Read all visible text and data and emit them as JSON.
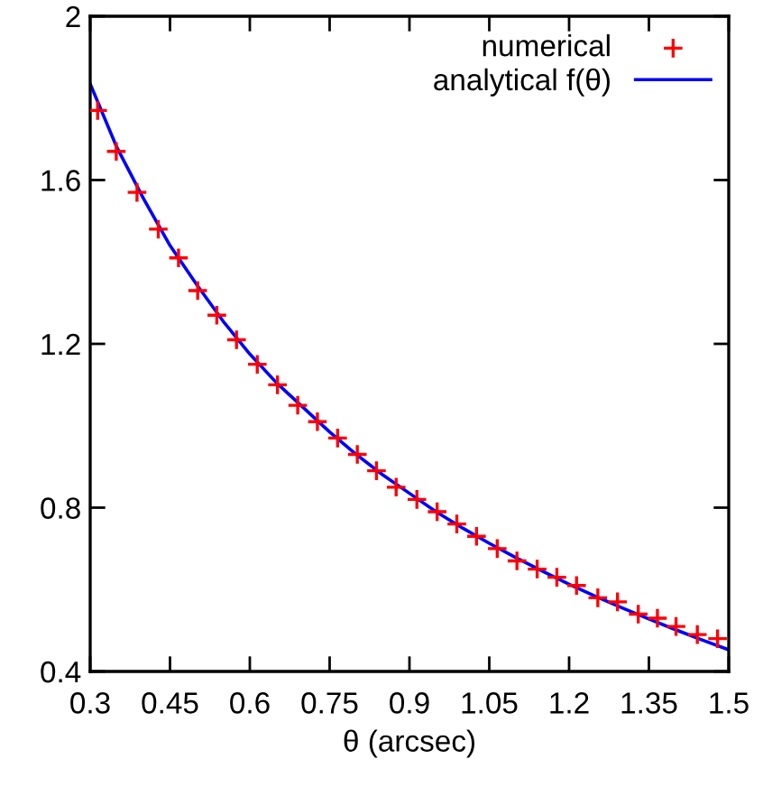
{
  "chart_data": {
    "type": "scatter",
    "xlabel": "θ (arcsec)",
    "xlim": [
      0.3,
      1.5
    ],
    "ylim": [
      0.4,
      2
    ],
    "xticks": [
      0.3,
      0.45,
      0.6,
      0.75,
      0.9,
      1.05,
      1.2,
      1.35,
      1.5
    ],
    "yticks": [
      0.4,
      0.8,
      1.2,
      1.6,
      2
    ],
    "grid": false,
    "legend": "top right",
    "series": [
      {
        "name": "numerical",
        "marker": "cross",
        "color": "#ff0000",
        "x": [
          0.314,
          0.349,
          0.388,
          0.428,
          0.466,
          0.502,
          0.538,
          0.575,
          0.614,
          0.652,
          0.69,
          0.727,
          0.765,
          0.802,
          0.838,
          0.875,
          0.914,
          0.952,
          0.989,
          1.026,
          1.065,
          1.102,
          1.14,
          1.177,
          1.214,
          1.254,
          1.291,
          1.33,
          1.366,
          1.401,
          1.441,
          1.479
        ],
        "values": [
          1.77,
          1.67,
          1.57,
          1.48,
          1.41,
          1.33,
          1.27,
          1.21,
          1.15,
          1.1,
          1.05,
          1.01,
          0.97,
          0.93,
          0.89,
          0.85,
          0.82,
          0.79,
          0.76,
          0.73,
          0.7,
          0.67,
          0.65,
          0.63,
          0.61,
          0.58,
          0.57,
          0.54,
          0.53,
          0.51,
          0.49,
          0.48
        ]
      },
      {
        "name": "analytical f(θ)",
        "type": "line",
        "marker": "none",
        "line_style": "solid",
        "color": "#0000ff",
        "x": [
          0.3,
          0.35,
          0.4,
          0.45,
          0.5,
          0.55,
          0.6,
          0.65,
          0.7,
          0.75,
          0.8,
          0.85,
          0.9,
          0.95,
          1.0,
          1.05,
          1.1,
          1.15,
          1.2,
          1.25,
          1.3,
          1.35,
          1.4,
          1.45,
          1.5
        ],
        "values": [
          1.835,
          1.68,
          1.555,
          1.44,
          1.345,
          1.255,
          1.175,
          1.105,
          1.045,
          0.985,
          0.93,
          0.88,
          0.835,
          0.79,
          0.75,
          0.713,
          0.678,
          0.645,
          0.613,
          0.583,
          0.555,
          0.528,
          0.502,
          0.477,
          0.453
        ]
      }
    ]
  }
}
